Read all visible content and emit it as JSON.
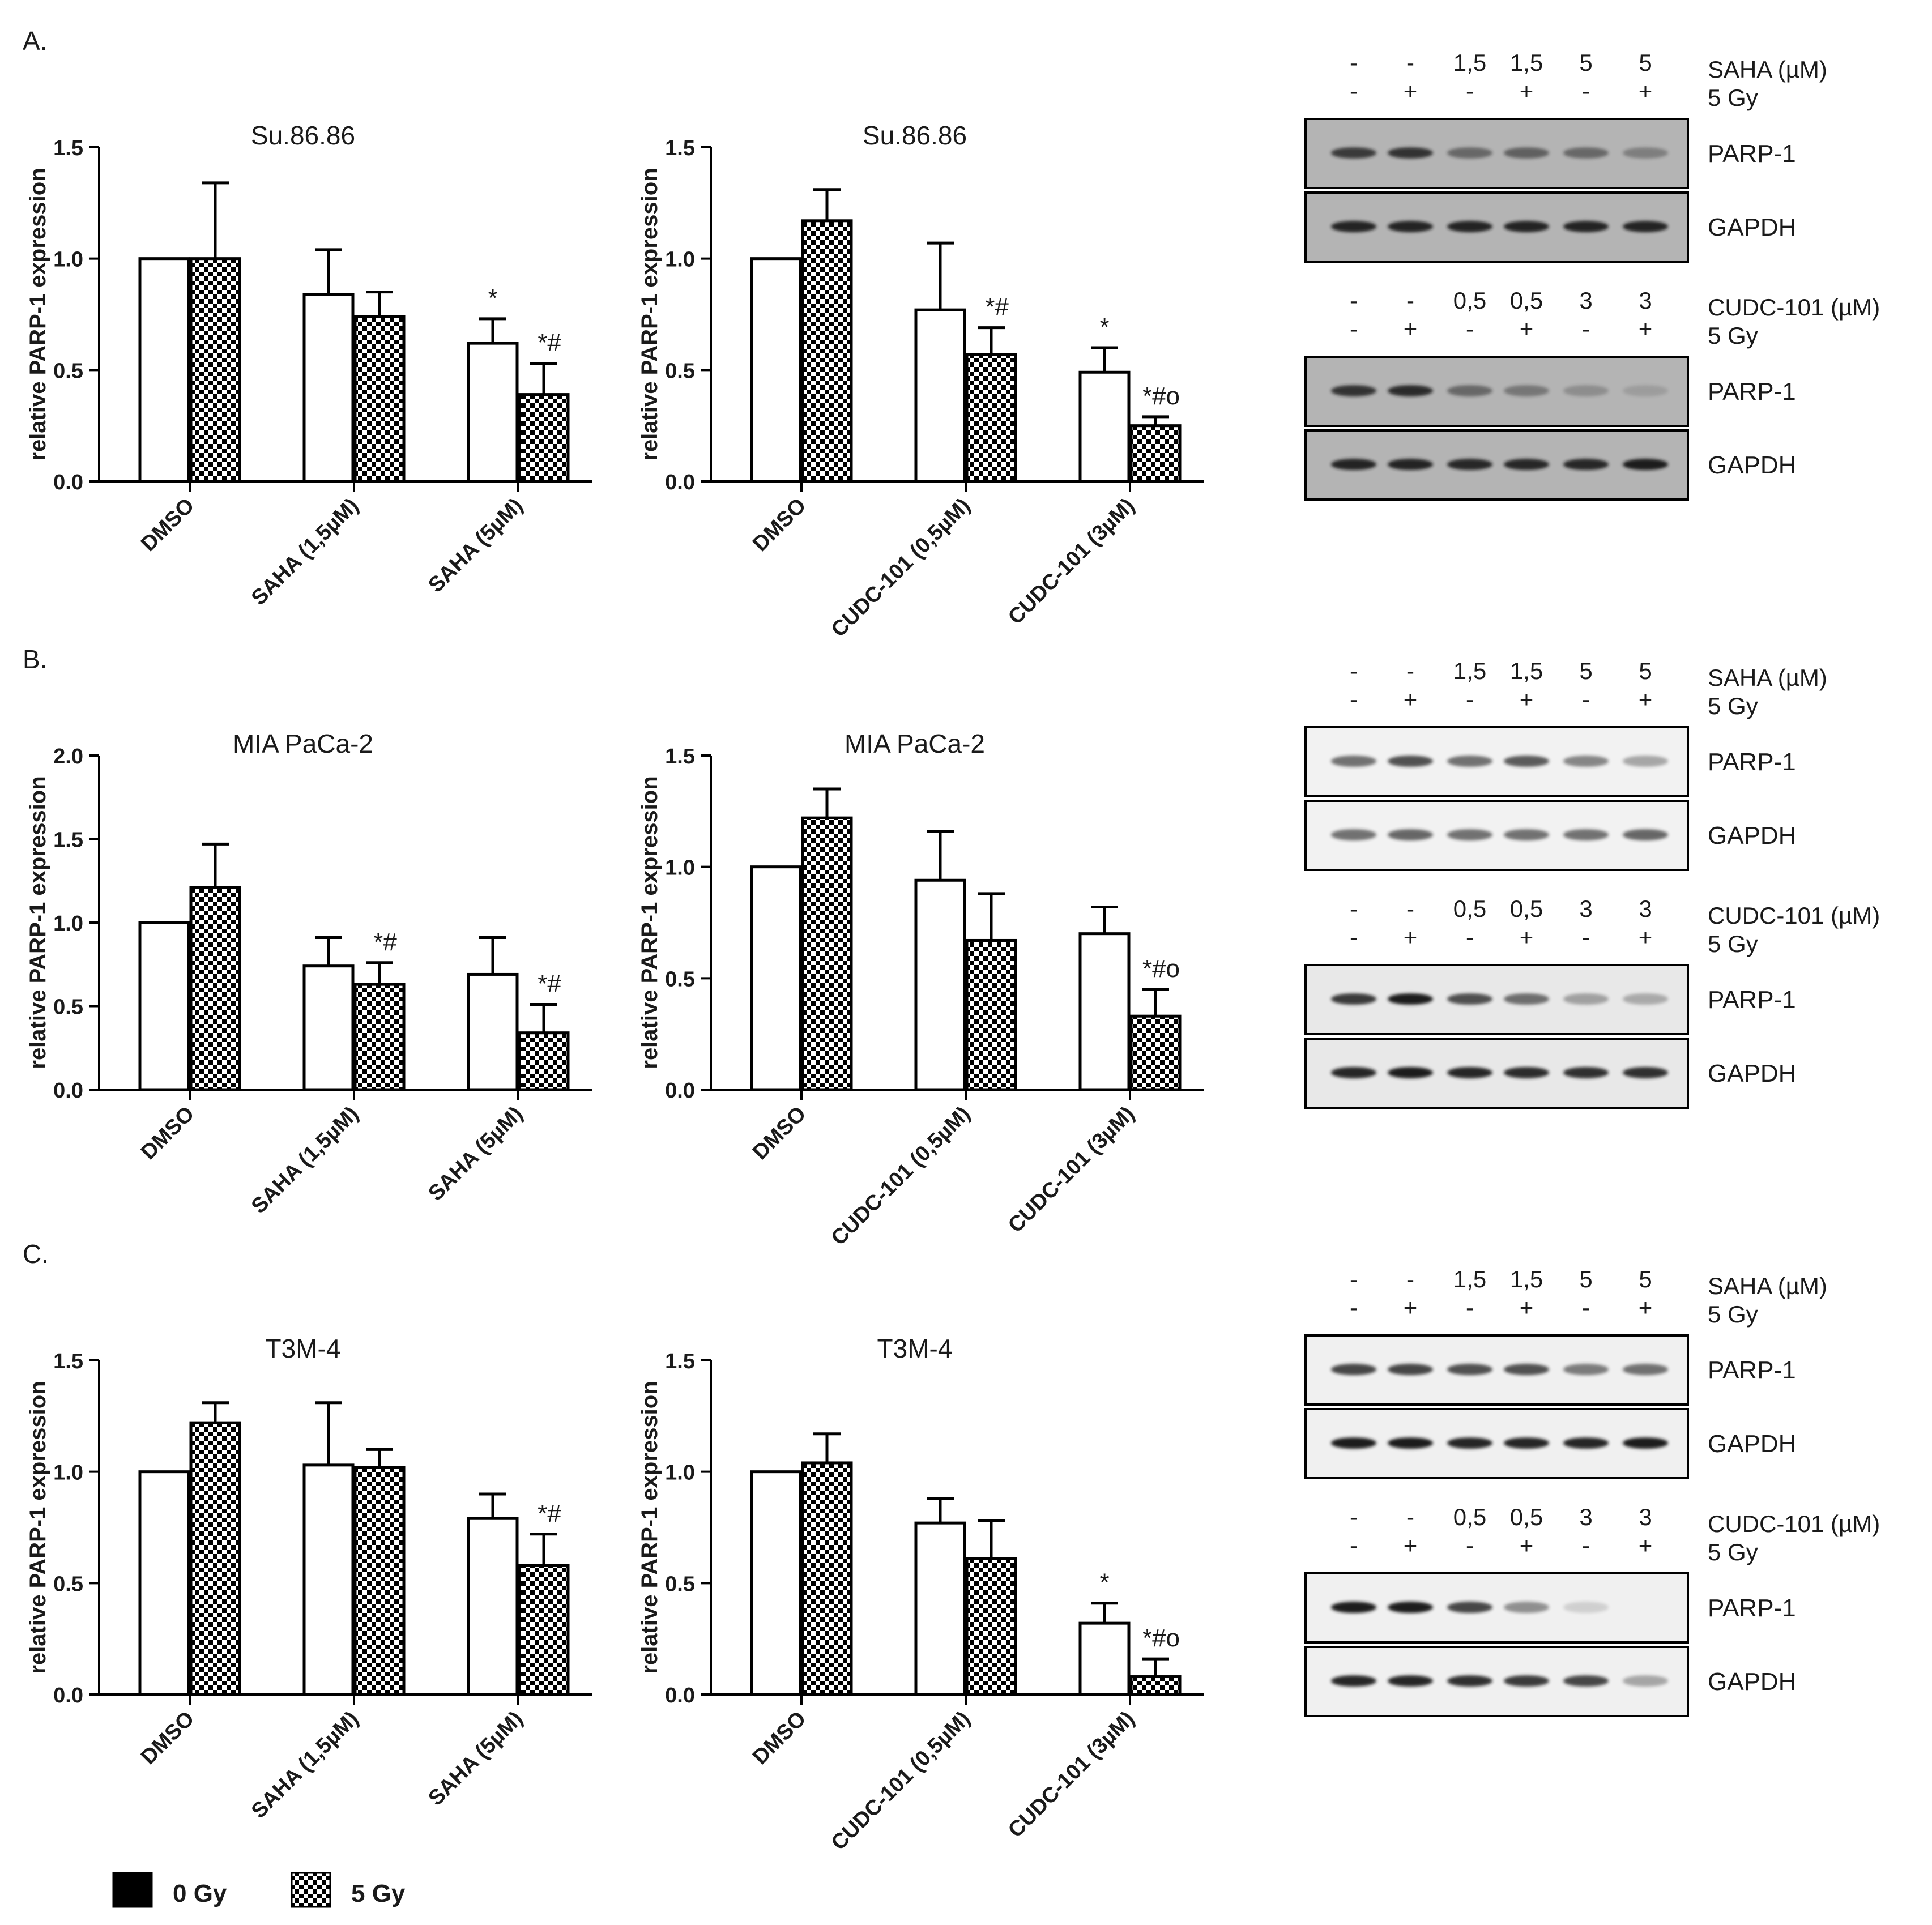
{
  "legend": [
    {
      "label": "0 Gy",
      "pattern": "solid"
    },
    {
      "label": "5 Gy",
      "pattern": "checker"
    }
  ],
  "colors": {
    "ink": "#000000",
    "blot_bg_dark": "#b4b4b4",
    "blot_bg_light": "#f2f2f2",
    "band": "#1e1e1e"
  },
  "panels": [
    {
      "letter": "A.",
      "chart_data": [
        {
          "type": "bar",
          "title": "Su.86.86",
          "ylabel": "relative PARP-1 expression",
          "ylim": [
            0,
            1.5
          ],
          "yticks": [
            "0.0",
            "0.5",
            "1.0",
            "1.5"
          ],
          "categories": [
            "DMSO",
            "SAHA (1,5µM)",
            "SAHA (5µM)"
          ],
          "series": [
            {
              "name": "0 Gy",
              "values": [
                1.0,
                0.84,
                0.62
              ],
              "errors": [
                0,
                0.2,
                0.11
              ],
              "annotations": [
                "",
                "",
                "*"
              ]
            },
            {
              "name": "5 Gy",
              "values": [
                1.0,
                0.74,
                0.39
              ],
              "errors": [
                0.34,
                0.11,
                0.14
              ],
              "annotations": [
                "",
                "",
                "*#"
              ]
            }
          ]
        },
        {
          "type": "bar",
          "title": "Su.86.86",
          "ylabel": "relative PARP-1 expression",
          "ylim": [
            0,
            1.5
          ],
          "yticks": [
            "0.0",
            "0.5",
            "1.0",
            "1.5"
          ],
          "categories": [
            "DMSO",
            "CUDC-101 (0,5µM)",
            "CUDC-101 (3µM)"
          ],
          "series": [
            {
              "name": "0 Gy",
              "values": [
                1.0,
                0.77,
                0.49
              ],
              "errors": [
                0,
                0.3,
                0.11
              ],
              "annotations": [
                "",
                "",
                "*"
              ]
            },
            {
              "name": "5 Gy",
              "values": [
                1.17,
                0.57,
                0.25
              ],
              "errors": [
                0.14,
                0.12,
                0.04
              ],
              "annotations": [
                "",
                "*#",
                "*#o"
              ]
            }
          ]
        }
      ],
      "blots": [
        {
          "lanes_top": [
            "-",
            "-",
            "1,5",
            "1,5",
            "5",
            "5"
          ],
          "lanes_gy": [
            "-",
            "+",
            "-",
            "+",
            "-",
            "+"
          ],
          "treatment": "SAHA (µM)",
          "dose": "5 Gy",
          "rows": [
            "PARP-1",
            "GAPDH"
          ],
          "bg": "#b4b4b4",
          "intensity": [
            [
              0.8,
              0.85,
              0.5,
              0.55,
              0.5,
              0.35
            ],
            [
              0.95,
              0.95,
              0.95,
              0.95,
              0.95,
              0.95
            ]
          ]
        },
        {
          "lanes_top": [
            "-",
            "-",
            "0,5",
            "0,5",
            "3",
            "3"
          ],
          "lanes_gy": [
            "-",
            "+",
            "-",
            "+",
            "-",
            "+"
          ],
          "treatment": "CUDC-101 (µM)",
          "dose": "5 Gy",
          "rows": [
            "PARP-1",
            "GAPDH"
          ],
          "bg": "#b4b4b4",
          "intensity": [
            [
              0.85,
              0.9,
              0.5,
              0.4,
              0.25,
              0.15
            ],
            [
              0.95,
              0.95,
              0.92,
              0.92,
              0.92,
              1.0
            ]
          ]
        }
      ]
    },
    {
      "letter": "B.",
      "chart_data": [
        {
          "type": "bar",
          "title": "MIA PaCa-2",
          "ylabel": "relative PARP-1 expression",
          "ylim": [
            0,
            2.0
          ],
          "yticks": [
            "0.0",
            "0.5",
            "1.0",
            "1.5",
            "2.0"
          ],
          "categories": [
            "DMSO",
            "SAHA (1,5µM)",
            "SAHA (5µM)"
          ],
          "series": [
            {
              "name": "0 Gy",
              "values": [
                1.0,
                0.74,
                0.69
              ],
              "errors": [
                0,
                0.17,
                0.22
              ],
              "annotations": [
                "",
                "",
                ""
              ]
            },
            {
              "name": "5 Gy",
              "values": [
                1.21,
                0.63,
                0.34
              ],
              "errors": [
                0.26,
                0.13,
                0.17
              ],
              "annotations": [
                "",
                "*#",
                "*#"
              ]
            }
          ]
        },
        {
          "type": "bar",
          "title": "MIA PaCa-2",
          "ylabel": "relative PARP-1 expression",
          "ylim": [
            0,
            1.5
          ],
          "yticks": [
            "0.0",
            "0.5",
            "1.0",
            "1.5"
          ],
          "categories": [
            "DMSO",
            "CUDC-101 (0,5µM)",
            "CUDC-101 (3µM)"
          ],
          "series": [
            {
              "name": "0 Gy",
              "values": [
                1.0,
                0.94,
                0.7
              ],
              "errors": [
                0,
                0.22,
                0.12
              ],
              "annotations": [
                "",
                "",
                ""
              ]
            },
            {
              "name": "5 Gy",
              "values": [
                1.22,
                0.67,
                0.33
              ],
              "errors": [
                0.13,
                0.21,
                0.12
              ],
              "annotations": [
                "",
                "",
                "*#o"
              ]
            }
          ]
        }
      ],
      "blots": [
        {
          "lanes_top": [
            "-",
            "-",
            "1,5",
            "1,5",
            "5",
            "5"
          ],
          "lanes_gy": [
            "-",
            "+",
            "-",
            "+",
            "-",
            "+"
          ],
          "treatment": "SAHA (µM)",
          "dose": "5 Gy",
          "rows": [
            "PARP-1",
            "GAPDH"
          ],
          "bg": "#f2f2f2",
          "intensity": [
            [
              0.6,
              0.75,
              0.6,
              0.7,
              0.5,
              0.35
            ],
            [
              0.6,
              0.65,
              0.6,
              0.6,
              0.6,
              0.65
            ]
          ]
        },
        {
          "lanes_top": [
            "-",
            "-",
            "0,5",
            "0,5",
            "3",
            "3"
          ],
          "lanes_gy": [
            "-",
            "+",
            "-",
            "+",
            "-",
            "+"
          ],
          "treatment": "CUDC-101 (µM)",
          "dose": "5 Gy",
          "rows": [
            "PARP-1",
            "GAPDH"
          ],
          "bg": "#e8e8e8",
          "intensity": [
            [
              0.85,
              1.0,
              0.75,
              0.6,
              0.35,
              0.3
            ],
            [
              0.95,
              1.0,
              0.95,
              0.92,
              0.9,
              0.9
            ]
          ]
        }
      ]
    },
    {
      "letter": "C.",
      "chart_data": [
        {
          "type": "bar",
          "title": "T3M-4",
          "ylabel": "relative PARP-1 expression",
          "ylim": [
            0,
            1.5
          ],
          "yticks": [
            "0.0",
            "0.5",
            "1.0",
            "1.5"
          ],
          "categories": [
            "DMSO",
            "SAHA (1,5µM)",
            "SAHA (5µM)"
          ],
          "series": [
            {
              "name": "0 Gy",
              "values": [
                1.0,
                1.03,
                0.79
              ],
              "errors": [
                0,
                0.28,
                0.11
              ],
              "annotations": [
                "",
                "",
                ""
              ]
            },
            {
              "name": "5 Gy",
              "values": [
                1.22,
                1.02,
                0.58
              ],
              "errors": [
                0.09,
                0.08,
                0.14
              ],
              "annotations": [
                "",
                "",
                "*#"
              ]
            }
          ]
        },
        {
          "type": "bar",
          "title": "T3M-4",
          "ylabel": "relative PARP-1 expression",
          "ylim": [
            0,
            1.5
          ],
          "yticks": [
            "0.0",
            "0.5",
            "1.0",
            "1.5"
          ],
          "categories": [
            "DMSO",
            "CUDC-101 (0,5µM)",
            "CUDC-101 (3µM)"
          ],
          "series": [
            {
              "name": "0 Gy",
              "values": [
                1.0,
                0.77,
                0.32
              ],
              "errors": [
                0,
                0.11,
                0.09
              ],
              "annotations": [
                "",
                "",
                "*"
              ]
            },
            {
              "name": "5 Gy",
              "values": [
                1.04,
                0.61,
                0.08
              ],
              "errors": [
                0.13,
                0.17,
                0.08
              ],
              "annotations": [
                "",
                "",
                "*#o"
              ]
            }
          ]
        }
      ],
      "blots": [
        {
          "lanes_top": [
            "-",
            "-",
            "1,5",
            "1,5",
            "5",
            "5"
          ],
          "lanes_gy": [
            "-",
            "+",
            "-",
            "+",
            "-",
            "+"
          ],
          "treatment": "SAHA (µM)",
          "dose": "5 Gy",
          "rows": [
            "PARP-1",
            "GAPDH"
          ],
          "bg": "#f0f0f0",
          "intensity": [
            [
              0.8,
              0.8,
              0.75,
              0.75,
              0.55,
              0.6
            ],
            [
              1.0,
              1.0,
              0.95,
              0.95,
              0.95,
              1.0
            ]
          ]
        },
        {
          "lanes_top": [
            "-",
            "-",
            "0,5",
            "0,5",
            "3",
            "3"
          ],
          "lanes_gy": [
            "-",
            "+",
            "-",
            "+",
            "-",
            "+"
          ],
          "treatment": "CUDC-101 (µM)",
          "dose": "5 Gy",
          "rows": [
            "PARP-1",
            "GAPDH"
          ],
          "bg": "#f0f0f0",
          "intensity": [
            [
              1.0,
              1.0,
              0.8,
              0.45,
              0.15,
              0.0
            ],
            [
              0.95,
              0.95,
              0.9,
              0.85,
              0.8,
              0.35
            ]
          ]
        }
      ]
    }
  ]
}
